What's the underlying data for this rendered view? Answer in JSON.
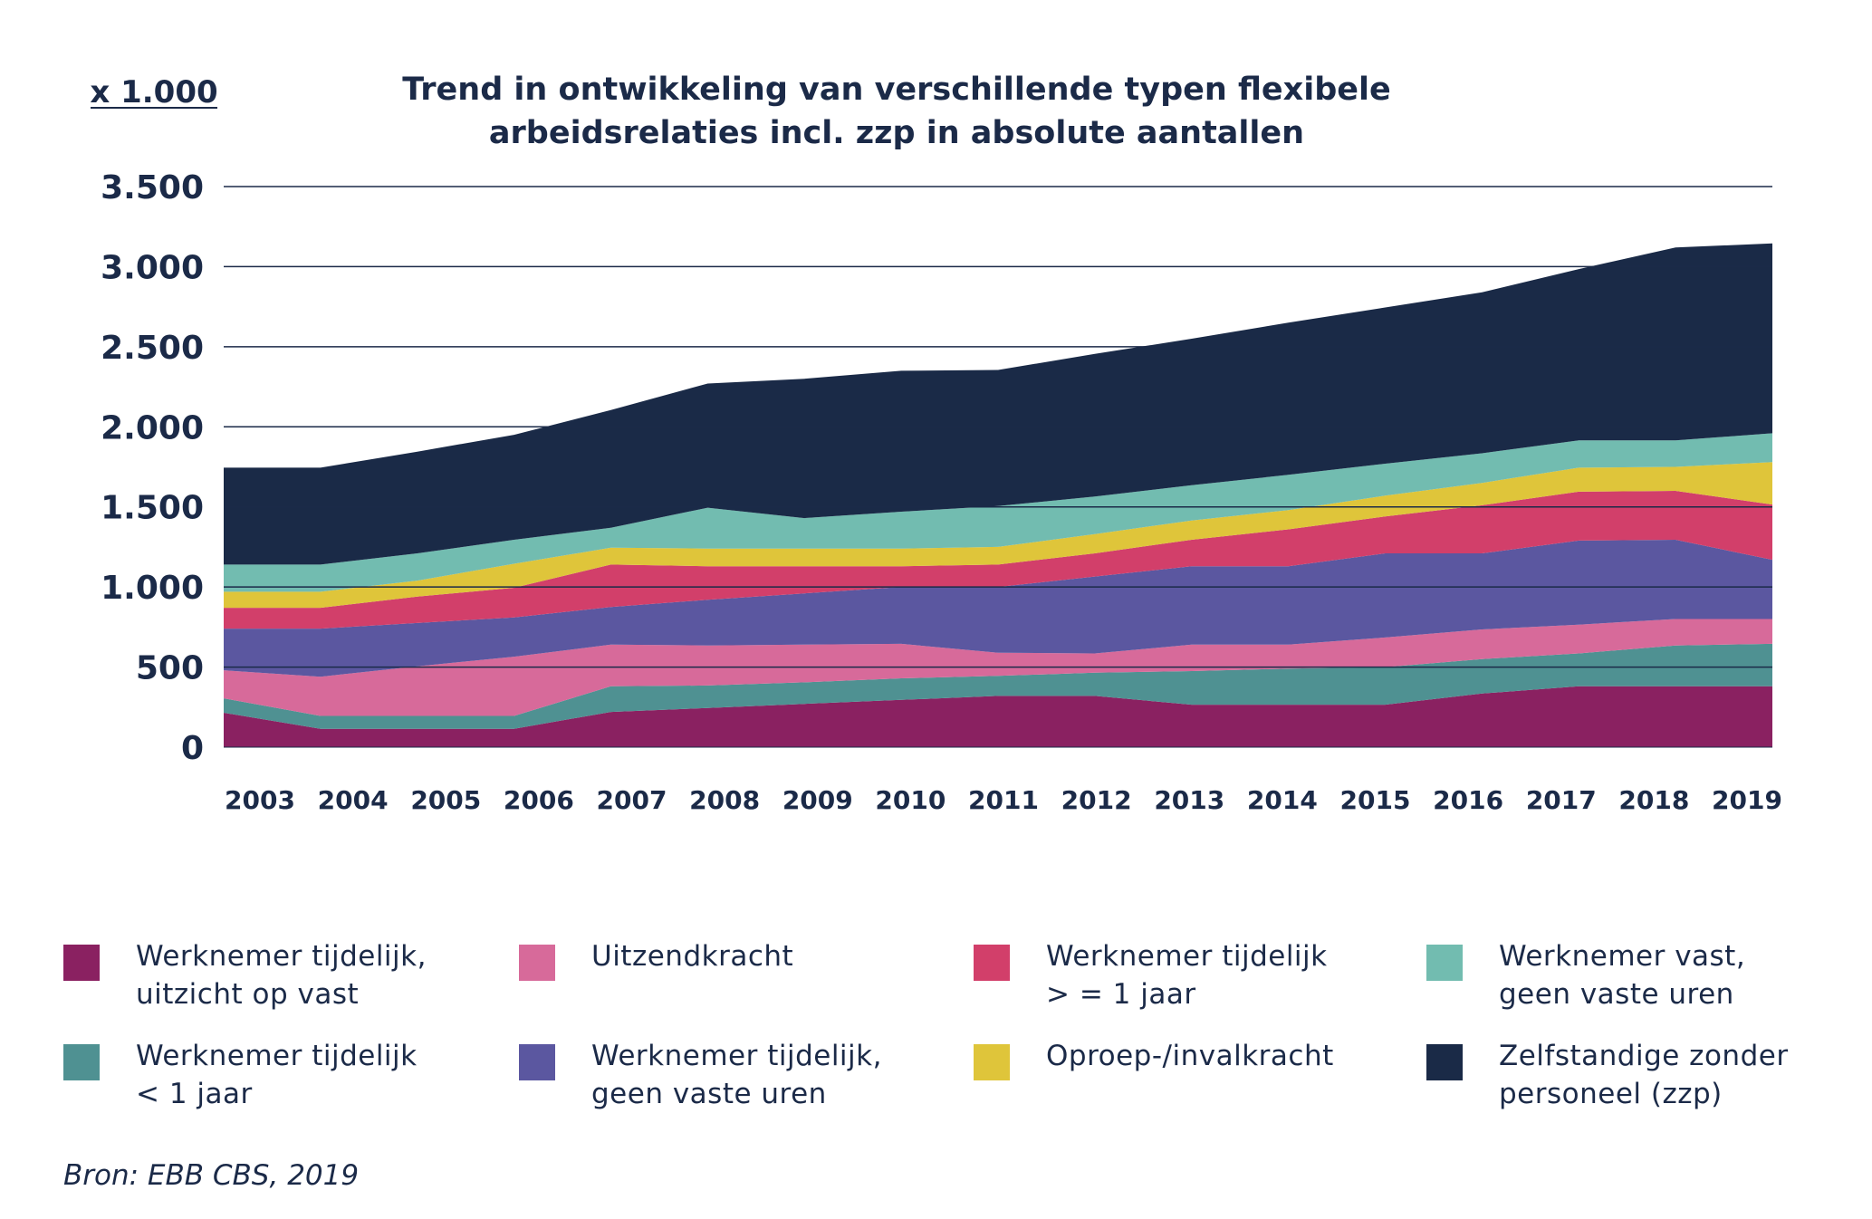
{
  "chart_data": {
    "type": "area",
    "stacked": true,
    "title": "Trend in ontwikkeling van verschillende typen flexibele arbeidsrelaties incl. zzp in absolute aantallen",
    "unit_label": "x 1.000",
    "ylim": [
      0,
      3500
    ],
    "y_ticks": [
      0,
      500,
      1000,
      1500,
      2000,
      2500,
      3000,
      3500
    ],
    "y_tick_labels": [
      "0",
      "500",
      "1.000",
      "1.500",
      "2.000",
      "2.500",
      "3.000",
      "3.500"
    ],
    "grid": true,
    "legend_position": "bottom",
    "x": [
      "2003",
      "2004",
      "2005",
      "2006",
      "2007",
      "2008",
      "2009",
      "2010",
      "2011",
      "2012",
      "2013",
      "2014",
      "2015",
      "2016",
      "2017",
      "2018",
      "2019"
    ],
    "series": [
      {
        "name": "Werknemer tijdelijk,\nuitzicht op vast",
        "color": "#8a2161",
        "values": [
          215,
          115,
          115,
          115,
          220,
          245,
          270,
          295,
          320,
          320,
          265,
          265,
          265,
          335,
          380,
          380,
          380
        ]
      },
      {
        "name": "Werknemer tijdelijk\n< 1 jaar",
        "color": "#4f9192",
        "values": [
          90,
          80,
          80,
          80,
          160,
          140,
          135,
          135,
          125,
          145,
          210,
          225,
          235,
          215,
          205,
          255,
          265
        ]
      },
      {
        "name": "Uitzendkracht",
        "color": "#d76a9a",
        "values": [
          175,
          245,
          310,
          370,
          260,
          250,
          235,
          215,
          145,
          120,
          165,
          150,
          185,
          185,
          180,
          165,
          155
        ]
      },
      {
        "name": "Werknemer tijdelijk,\ngeen vaste uren",
        "color": "#5b57a0",
        "values": [
          260,
          300,
          270,
          245,
          235,
          285,
          320,
          355,
          410,
          480,
          490,
          490,
          525,
          475,
          525,
          495,
          370
        ]
      },
      {
        "name": "Werknemer tijdelijk\n> = 1 jaar",
        "color": "#d23f6a",
        "values": [
          130,
          130,
          165,
          185,
          265,
          210,
          170,
          130,
          140,
          145,
          165,
          230,
          230,
          300,
          305,
          305,
          345
        ]
      },
      {
        "name": "Oproep-/invalkracht",
        "color": "#dfc53a",
        "values": [
          100,
          100,
          100,
          150,
          105,
          110,
          110,
          110,
          110,
          120,
          120,
          120,
          130,
          140,
          150,
          150,
          265
        ]
      },
      {
        "name": "Werknemer vast,\ngeen vaste uren",
        "color": "#72bcb0",
        "values": [
          170,
          170,
          170,
          150,
          125,
          255,
          190,
          230,
          255,
          235,
          220,
          220,
          200,
          185,
          170,
          165,
          180
        ]
      },
      {
        "name": "Zelfstandige zonder\npersoneel (zzp)",
        "color": "#1a2a47",
        "values": [
          605,
          605,
          635,
          655,
          735,
          775,
          870,
          880,
          850,
          890,
          915,
          950,
          975,
          1005,
          1070,
          1205,
          1185
        ]
      }
    ]
  },
  "legend_order": [
    0,
    2,
    4,
    6,
    1,
    3,
    5,
    7
  ],
  "source": "Bron: EBB CBS, 2019"
}
